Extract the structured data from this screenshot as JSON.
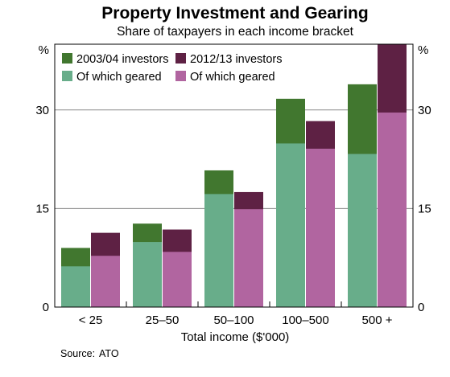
{
  "chart_data": {
    "type": "bar",
    "title": "Property Investment and Gearing",
    "subtitle": "Share of taxpayers in each income bracket",
    "xlabel": "Total income ($'000)",
    "ylabel_left": "%",
    "ylabel_right": "%",
    "ylim": [
      0,
      40
    ],
    "yticks": [
      0,
      15,
      30
    ],
    "yticks_labels": [
      "0",
      "15",
      "30"
    ],
    "grid": true,
    "legend_position": "top-left",
    "categories": [
      "< 25",
      "25–50",
      "50–100",
      "100–500",
      "500 +"
    ],
    "series": [
      {
        "name": "2003/04 investors",
        "values": [
          9.0,
          12.7,
          20.8,
          31.7,
          33.9
        ],
        "color": "#41772f",
        "geared_name": "Of which geared",
        "geared_values": [
          6.2,
          9.9,
          17.2,
          24.9,
          23.3
        ],
        "geared_color": "#68ad8a"
      },
      {
        "name": "2012/13 investors",
        "values": [
          11.3,
          11.8,
          17.5,
          28.3,
          40.0
        ],
        "color": "#5e2144",
        "geared_name": "Of which geared",
        "geared_values": [
          7.8,
          8.4,
          14.9,
          24.1,
          29.6
        ],
        "geared_color": "#b165a0"
      }
    ],
    "source_label": "Source:",
    "source_text": "ATO"
  }
}
